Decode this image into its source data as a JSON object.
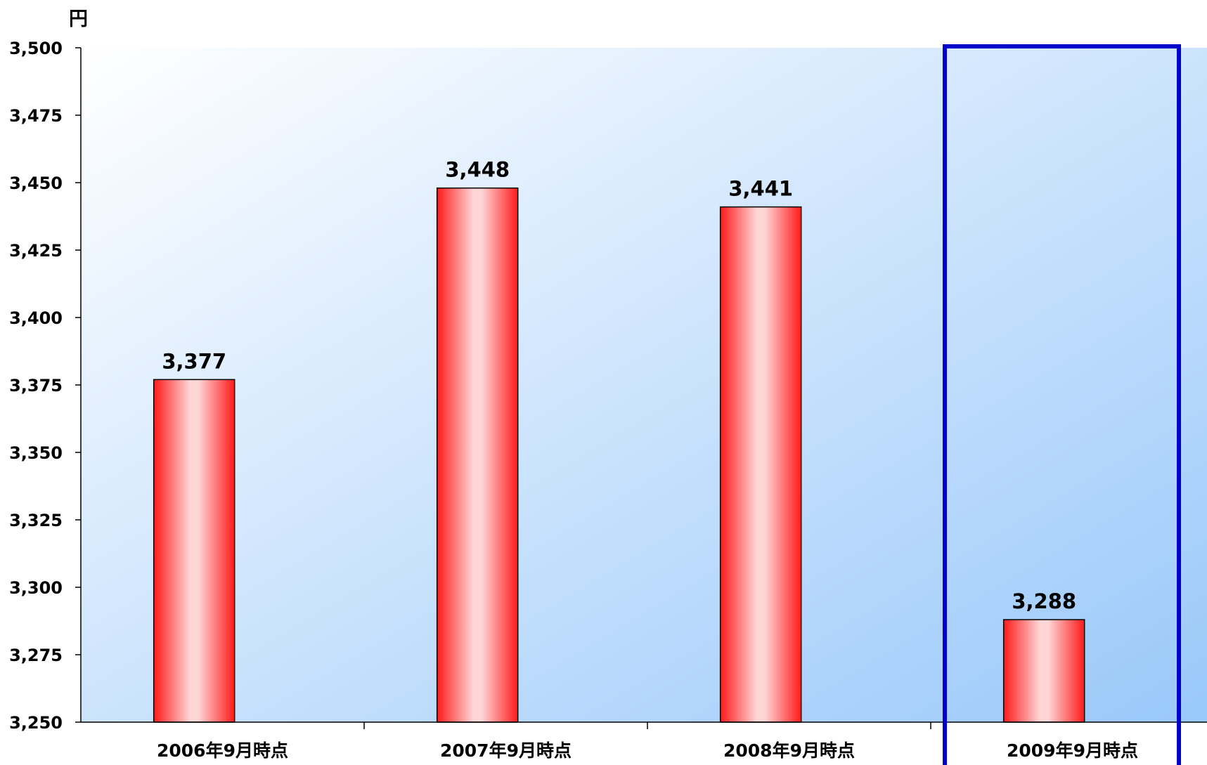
{
  "chart_data": {
    "type": "bar",
    "title": "",
    "ylabel": "円",
    "xlabel": "",
    "categories": [
      "2006年9月時点",
      "2007年9月時点",
      "2008年9月時点",
      "2009年9月時点"
    ],
    "values": [
      3377,
      3448,
      3441,
      3288
    ],
    "data_labels": [
      "3,377",
      "3,448",
      "3,441",
      "3,288"
    ],
    "ylim": [
      3250,
      3500
    ],
    "yticks": [
      3250,
      3275,
      3300,
      3325,
      3350,
      3375,
      3400,
      3425,
      3450,
      3475,
      3500
    ],
    "ytick_labels": [
      "3,250",
      "3,275",
      "3,300",
      "3,325",
      "3,350",
      "3,375",
      "3,400",
      "3,425",
      "3,450",
      "3,475",
      "3,500"
    ],
    "highlight_category_index": 3,
    "grid": false,
    "legend": "none",
    "colors": {
      "bar_edge": "#ff1a1a",
      "bar_center": "#ffd6d6",
      "plot_bg_light": "#ffffff",
      "plot_bg_dark": "#99c8fa",
      "highlight_box": "#0000cc"
    }
  }
}
